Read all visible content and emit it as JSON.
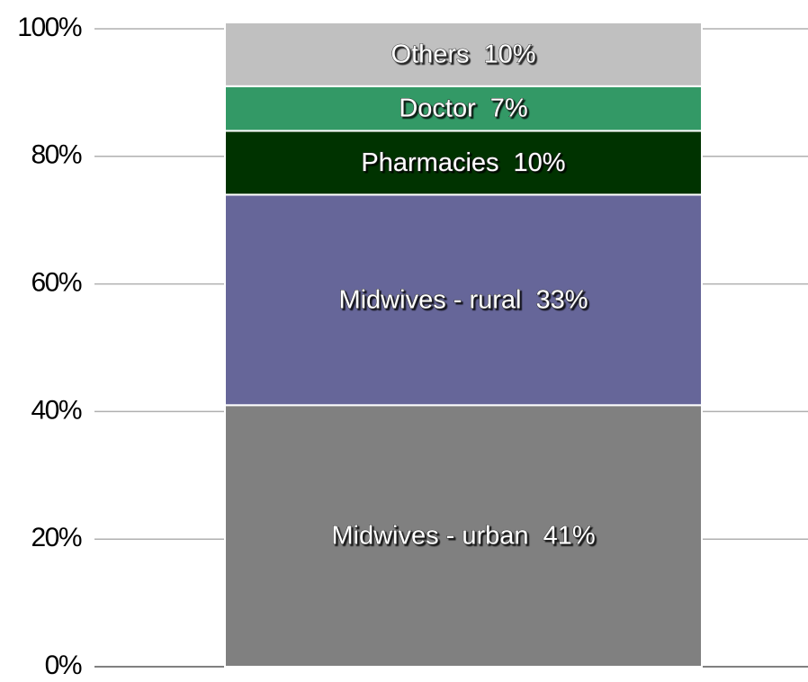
{
  "chart_data": {
    "type": "bar",
    "stacked": true,
    "categories": [
      null
    ],
    "series": [
      {
        "name": "Midwives - urban",
        "color": "#808080",
        "values": [
          41
        ],
        "value_labels": [
          "41%"
        ]
      },
      {
        "name": "Midwives - rural",
        "color": "#666699",
        "values": [
          33
        ],
        "value_labels": [
          "33%"
        ]
      },
      {
        "name": "Pharmacies",
        "color": "#003300",
        "values": [
          10
        ],
        "value_labels": [
          "10%"
        ]
      },
      {
        "name": "Doctor",
        "color": "#339966",
        "values": [
          7
        ],
        "value_labels": [
          "7%"
        ]
      },
      {
        "name": "Others",
        "color": "#c0c0c0",
        "values": [
          10
        ],
        "value_labels": [
          "10%"
        ]
      }
    ],
    "ylim": [
      0,
      100
    ],
    "yticks": [
      {
        "value": 0,
        "label": "0%"
      },
      {
        "value": 20,
        "label": "20%"
      },
      {
        "value": 40,
        "label": "40%"
      },
      {
        "value": 60,
        "label": "60%"
      },
      {
        "value": 80,
        "label": "80%"
      },
      {
        "value": 100,
        "label": "100%"
      }
    ],
    "grid": true
  }
}
